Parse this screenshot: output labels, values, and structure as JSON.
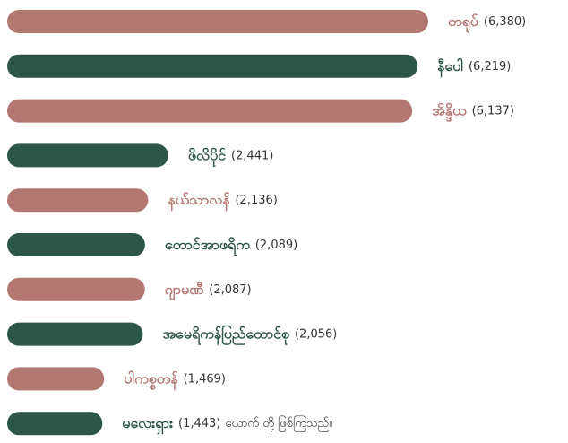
{
  "chart_data": {
    "type": "bar",
    "categories": [
      "တရုပ်",
      "နီပေါ",
      "အိန္ဒိယ",
      "ဖိလိပိုင်",
      "နယ်သာလန်",
      "တောင်အာဖရိက",
      "ဂျာမဏီ",
      "အမေရိကန်ပြည်ထောင်စု",
      "ပါကစ္စတန်",
      "မလေးရှား"
    ],
    "values": [
      6380,
      6219,
      6137,
      2441,
      2136,
      2089,
      2087,
      2056,
      1469,
      1443
    ],
    "value_labels": [
      "(6,380)",
      "(6,219)",
      "(6,137)",
      "(2,441)",
      "(2,136)",
      "(2,089)",
      "(2,087)",
      "(2,056)",
      "(1,469)",
      "(1,443)"
    ],
    "colors": [
      "#b27771",
      "#2d5648",
      "#b27771",
      "#2d5648",
      "#b27771",
      "#2d5648",
      "#b27771",
      "#2d5648",
      "#b27771",
      "#2d5648"
    ],
    "annotation": "ယောက် တို့ ဖြစ်ကြသည်။"
  }
}
